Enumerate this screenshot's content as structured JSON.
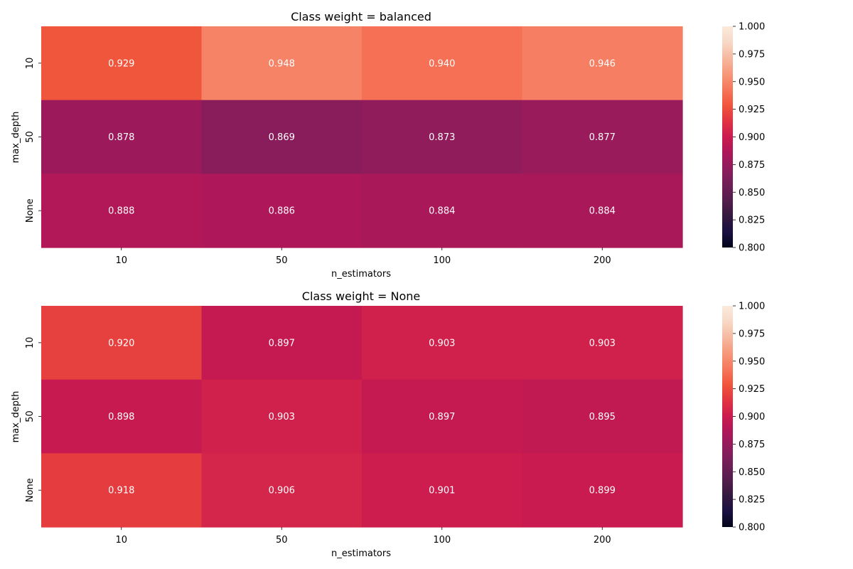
{
  "chart_data": [
    {
      "type": "heatmap",
      "title": "Class weight = balanced",
      "xlabel": "n_estimators",
      "ylabel": "max_depth",
      "x_categories": [
        "10",
        "50",
        "100",
        "200"
      ],
      "y_categories": [
        "10",
        "50",
        "None"
      ],
      "values": [
        [
          0.929,
          0.948,
          0.94,
          0.946
        ],
        [
          0.878,
          0.869,
          0.873,
          0.877
        ],
        [
          0.888,
          0.886,
          0.884,
          0.884
        ]
      ],
      "value_labels": [
        [
          "0.929",
          "0.948",
          "0.940",
          "0.946"
        ],
        [
          "0.878",
          "0.869",
          "0.873",
          "0.877"
        ],
        [
          "0.888",
          "0.886",
          "0.884",
          "0.884"
        ]
      ],
      "vmin": 0.8,
      "vmax": 1.0,
      "colorbar_ticks": [
        "0.800",
        "0.825",
        "0.850",
        "0.875",
        "0.900",
        "0.925",
        "0.950",
        "0.975",
        "1.000"
      ],
      "colormap": "rocket",
      "grid": false
    },
    {
      "type": "heatmap",
      "title": "Class weight = None",
      "xlabel": "n_estimators",
      "ylabel": "max_depth",
      "x_categories": [
        "10",
        "50",
        "100",
        "200"
      ],
      "y_categories": [
        "10",
        "50",
        "None"
      ],
      "values": [
        [
          0.92,
          0.897,
          0.903,
          0.903
        ],
        [
          0.898,
          0.903,
          0.897,
          0.895
        ],
        [
          0.918,
          0.906,
          0.901,
          0.899
        ]
      ],
      "value_labels": [
        [
          "0.920",
          "0.897",
          "0.903",
          "0.903"
        ],
        [
          "0.898",
          "0.903",
          "0.897",
          "0.895"
        ],
        [
          "0.918",
          "0.906",
          "0.901",
          "0.899"
        ]
      ],
      "vmin": 0.8,
      "vmax": 1.0,
      "colorbar_ticks": [
        "0.800",
        "0.825",
        "0.850",
        "0.875",
        "0.900",
        "0.925",
        "0.950",
        "0.975",
        "1.000"
      ],
      "colormap": "rocket",
      "grid": false
    }
  ],
  "colormap_stops": [
    "#03051a",
    "#1a1042",
    "#35193e",
    "#541e4d",
    "#701f57",
    "#8e1d5c",
    "#ad1759",
    "#cb1b4f",
    "#e13342",
    "#f0553b",
    "#f6775b",
    "#f7987a",
    "#f6b9a0",
    "#f8d8c6",
    "#faebdd"
  ]
}
